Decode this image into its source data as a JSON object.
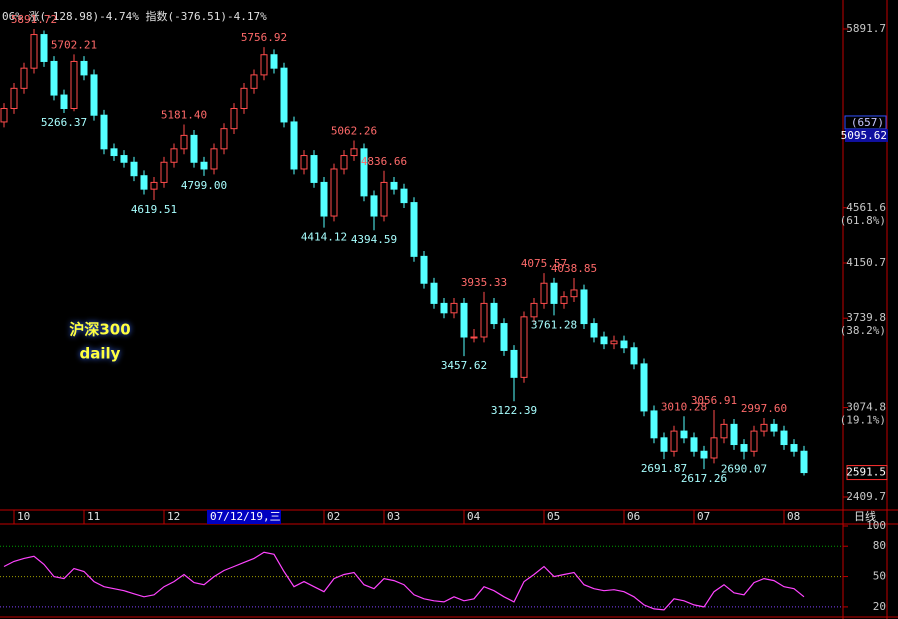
{
  "header": "06% 涨(-128.98)-4.74% 指数(-376.51)-4.17%",
  "chart_data": [
    {
      "type": "candlestick",
      "title": "沪深300",
      "subtitle": "daily",
      "period_label": "日线",
      "up_color": "#ff4c4c",
      "down_color": "#54ffff",
      "high_label_color": "#ff6a6a",
      "low_label_color": "#a8ffff",
      "xlim": [
        -0.4,
        80.6
      ],
      "ylim": [
        2313,
        6070
      ],
      "xticks": [
        {
          "value": 1,
          "label": "10"
        },
        {
          "value": 8,
          "label": "11"
        },
        {
          "value": 16,
          "label": "12"
        },
        {
          "value": 32,
          "label": "02"
        },
        {
          "value": 38,
          "label": "03"
        },
        {
          "value": 46,
          "label": "04"
        },
        {
          "value": 54,
          "label": "05"
        },
        {
          "value": 62,
          "label": "06"
        },
        {
          "value": 69,
          "label": "07"
        },
        {
          "value": 78,
          "label": "08"
        }
      ],
      "yticks": [
        5891.7,
        4561.6,
        4150.7,
        3739.8,
        3074.8,
        2409.7
      ],
      "fib_levels": [
        {
          "value": 4561.6,
          "label": "(61.8%)"
        },
        {
          "value": 3739.8,
          "label": "(38.2%)"
        },
        {
          "value": 3074.8,
          "label": "(19.1%)"
        }
      ],
      "cursor": {
        "date": "07/12/19,三",
        "count": "(657)",
        "value": 5095.62
      },
      "last_price": 2591.5,
      "open": [
        5200,
        5300,
        5450,
        5600,
        5850,
        5650,
        5400,
        5300,
        5650,
        5550,
        5250,
        5000,
        4950,
        4900,
        4800,
        4700,
        4750,
        4900,
        5000,
        5100,
        4900,
        4850,
        5000,
        5150,
        5300,
        5450,
        5550,
        5700,
        5600,
        5200,
        4850,
        4950,
        4750,
        4500,
        4850,
        4950,
        5000,
        4650,
        4500,
        4750,
        4700,
        4600,
        4200,
        4000,
        3850,
        3780,
        3850,
        3600,
        3600,
        3850,
        3700,
        3500,
        3300,
        3750,
        3850,
        4000,
        3850,
        3900,
        3950,
        3700,
        3600,
        3550,
        3570,
        3520,
        3400,
        3050,
        2850,
        2750,
        2900,
        2850,
        2750,
        2700,
        2850,
        2950,
        2800,
        2750,
        2900,
        2950,
        2900,
        2800,
        2750
      ],
      "high": [
        5340,
        5490,
        5640,
        5891.72,
        5880,
        5690,
        5440,
        5702.21,
        5690,
        5590,
        5290,
        5040,
        4990,
        4940,
        4840,
        4790,
        4940,
        5040,
        5181.4,
        5140,
        4940,
        5040,
        5190,
        5340,
        5490,
        5590,
        5756.92,
        5740,
        5640,
        5240,
        4990,
        4990,
        4790,
        4890,
        4990,
        5062.26,
        5040,
        4690,
        4836.66,
        4790,
        4740,
        4640,
        4240,
        4040,
        3890,
        3890,
        3890,
        3660,
        3935.33,
        3890,
        3740,
        3540,
        3790,
        3890,
        4075.57,
        4040,
        3940,
        4038.85,
        3990,
        3740,
        3640,
        3610,
        3610,
        3560,
        3440,
        3090,
        2890,
        2940,
        3010.28,
        2890,
        2790,
        3056.91,
        2990,
        2990,
        2840,
        2940,
        2997.6,
        2990,
        2940,
        2840,
        2790
      ],
      "low": [
        5160,
        5260,
        5410,
        5560,
        5610,
        5360,
        5266.37,
        5280,
        5510,
        5210,
        4960,
        4910,
        4860,
        4760,
        4660,
        4619.51,
        4710,
        4860,
        4960,
        4860,
        4799,
        4810,
        4960,
        5110,
        5260,
        5410,
        5510,
        5560,
        5160,
        4810,
        4810,
        4710,
        4414.12,
        4460,
        4810,
        4910,
        4610,
        4394.59,
        4460,
        4660,
        4560,
        4160,
        3960,
        3810,
        3740,
        3740,
        3457.62,
        3560,
        3560,
        3660,
        3460,
        3122.39,
        3260,
        3710,
        3810,
        3761.28,
        3810,
        3860,
        3660,
        3560,
        3510,
        3510,
        3480,
        3360,
        3010,
        2810,
        2691.87,
        2710,
        2810,
        2710,
        2617.26,
        2660,
        2810,
        2760,
        2690.07,
        2710,
        2860,
        2860,
        2760,
        2710,
        2570
      ],
      "close": [
        5300,
        5450,
        5600,
        5850,
        5650,
        5400,
        5300,
        5650,
        5550,
        5250,
        5000,
        4950,
        4900,
        4800,
        4700,
        4750,
        4900,
        5000,
        5100,
        4900,
        4850,
        5000,
        5150,
        5300,
        5450,
        5550,
        5700,
        5600,
        5200,
        4850,
        4950,
        4750,
        4500,
        4850,
        4950,
        5000,
        4650,
        4500,
        4750,
        4700,
        4600,
        4200,
        4000,
        3850,
        3780,
        3850,
        3600,
        3600,
        3850,
        3700,
        3500,
        3300,
        3750,
        3850,
        4000,
        3850,
        3900,
        3950,
        3700,
        3600,
        3550,
        3570,
        3520,
        3400,
        3050,
        2850,
        2750,
        2900,
        2850,
        2750,
        2700,
        2850,
        2950,
        2800,
        2750,
        2900,
        2950,
        2900,
        2800,
        2750,
        2591.5
      ],
      "annotations": [
        {
          "value": 5891.72,
          "label": "5891.72"
        },
        {
          "value": 5702.21,
          "label": "5702.21"
        },
        {
          "value": 5266.37,
          "label": "5266.37"
        },
        {
          "value": 5756.92,
          "label": "5756.92"
        },
        {
          "value": 5181.4,
          "label": "5181.40"
        },
        {
          "value": 4799,
          "label": "4799.00"
        },
        {
          "value": 4619.51,
          "label": "4619.51"
        },
        {
          "value": 5062.26,
          "label": "5062.26"
        },
        {
          "value": 4836.66,
          "label": "4836.66"
        },
        {
          "value": 4414.12,
          "label": "4414.12"
        },
        {
          "value": 4394.59,
          "label": "4394.59"
        },
        {
          "value": 3935.33,
          "label": "3935.33"
        },
        {
          "value": 3457.62,
          "label": "3457.62"
        },
        {
          "value": 3122.39,
          "label": "3122.39"
        },
        {
          "value": 4075.57,
          "label": "4075.57"
        },
        {
          "value": 4038.85,
          "label": "4038.85"
        },
        {
          "value": 3761.28,
          "label": "3761.28"
        },
        {
          "value": 3010.28,
          "label": "3010.28"
        },
        {
          "value": 3056.91,
          "label": "3056.91"
        },
        {
          "value": 2997.6,
          "label": "2997.60"
        },
        {
          "value": 2691.87,
          "label": "2691.87"
        },
        {
          "value": 2617.26,
          "label": "2617.26"
        },
        {
          "value": 2690.07,
          "label": "2690.07"
        }
      ]
    },
    {
      "type": "line",
      "xlim": [
        -0.4,
        80.6
      ],
      "ylim": [
        12,
        100
      ],
      "yticks": [
        100,
        80,
        50,
        20
      ],
      "ref_lines": [
        {
          "value": 80,
          "color": "#00a000"
        },
        {
          "value": 50,
          "color": "#a0a000"
        },
        {
          "value": 20,
          "color": "#8040ff"
        }
      ],
      "series": [
        {
          "color": "#ff44ff",
          "values": [
            60,
            65,
            68,
            70,
            62,
            50,
            48,
            58,
            55,
            45,
            40,
            38,
            36,
            33,
            30,
            32,
            40,
            45,
            52,
            44,
            42,
            50,
            56,
            60,
            64,
            68,
            74,
            72,
            55,
            40,
            45,
            40,
            35,
            48,
            52,
            54,
            42,
            38,
            48,
            46,
            42,
            32,
            28,
            26,
            25,
            30,
            26,
            28,
            40,
            36,
            30,
            25,
            45,
            52,
            60,
            50,
            52,
            54,
            42,
            38,
            36,
            37,
            35,
            30,
            22,
            18,
            17,
            28,
            26,
            22,
            20,
            35,
            42,
            34,
            32,
            44,
            48,
            46,
            40,
            38,
            30
          ]
        }
      ]
    }
  ]
}
